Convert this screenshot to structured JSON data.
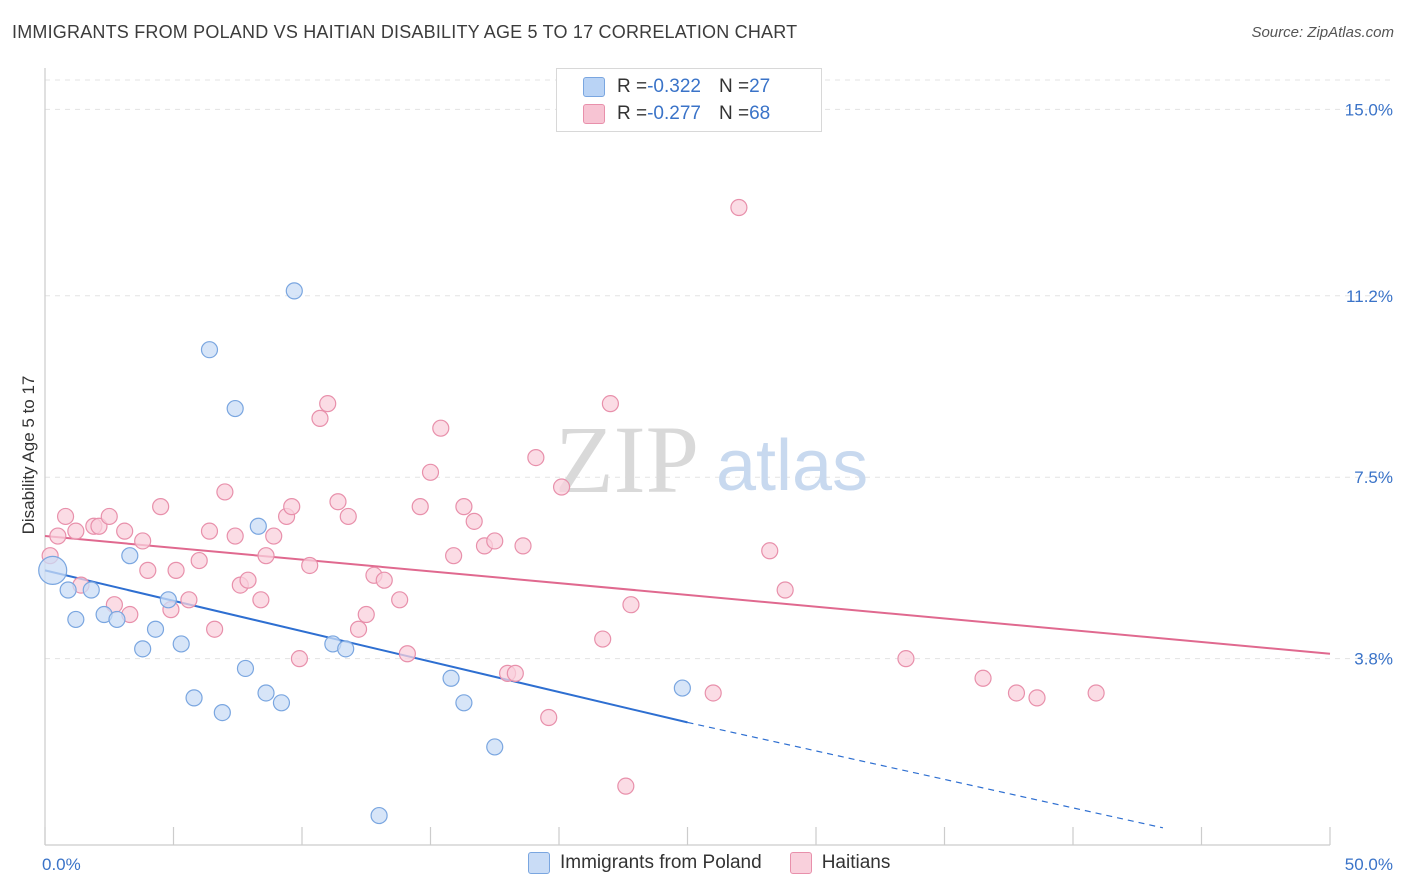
{
  "title": "IMMIGRANTS FROM POLAND VS HAITIAN DISABILITY AGE 5 TO 17 CORRELATION CHART",
  "source": "Source: ZipAtlas.com",
  "watermark": {
    "zip": "ZIP",
    "atlas": "atlas"
  },
  "legend_top": [
    {
      "r_label": "R = ",
      "r_value": "-0.322",
      "n_label": "N = ",
      "n_value": "27",
      "color": "#b9d3f5",
      "border": "#7aa6e0"
    },
    {
      "r_label": "R = ",
      "r_value": "-0.277",
      "n_label": "N = ",
      "n_value": "68",
      "color": "#f7c4d3",
      "border": "#e890ab"
    }
  ],
  "legend_bottom": [
    {
      "label": "Immigrants from Poland",
      "color": "#c9dcf6",
      "border": "#7aa6e0"
    },
    {
      "label": "Haitians",
      "color": "#f9d0dc",
      "border": "#e890ab"
    }
  ],
  "chart_data": {
    "type": "scatter",
    "title": "IMMIGRANTS FROM POLAND VS HAITIAN DISABILITY AGE 5 TO 17 CORRELATION CHART",
    "xlabel": "",
    "ylabel": "Disability Age 5 to 17",
    "xlim": [
      0,
      50
    ],
    "ylim": [
      0.0,
      15.6
    ],
    "x_tick_labels": [
      "0.0%",
      "50.0%"
    ],
    "y_ticks": [
      3.8,
      7.5,
      11.2,
      15.0
    ],
    "y_tick_labels": [
      "3.8%",
      "7.5%",
      "11.2%",
      "15.0%"
    ],
    "grid": true,
    "series": [
      {
        "name": "Immigrants from Poland",
        "color": "#7aa6e0",
        "fill": "#c9dcf6",
        "line_color": "#2e6fd1",
        "r": -0.322,
        "n": 27,
        "trend": {
          "x0": 0,
          "y0": 5.6,
          "x1": 25,
          "y1": 2.5,
          "dash_to_x": 43.5,
          "dash_to_y": 0.35
        },
        "points": [
          [
            0.3,
            5.6
          ],
          [
            0.9,
            5.2
          ],
          [
            1.2,
            4.6
          ],
          [
            1.8,
            5.2
          ],
          [
            2.3,
            4.7
          ],
          [
            2.8,
            4.6
          ],
          [
            3.3,
            5.9
          ],
          [
            3.8,
            4.0
          ],
          [
            4.3,
            4.4
          ],
          [
            4.8,
            5.0
          ],
          [
            5.3,
            4.1
          ],
          [
            5.8,
            3.0
          ],
          [
            6.4,
            10.1
          ],
          [
            6.9,
            2.7
          ],
          [
            7.4,
            8.9
          ],
          [
            7.8,
            3.6
          ],
          [
            8.3,
            6.5
          ],
          [
            8.6,
            3.1
          ],
          [
            9.2,
            2.9
          ],
          [
            9.7,
            11.3
          ],
          [
            11.2,
            4.1
          ],
          [
            11.7,
            4.0
          ],
          [
            13.0,
            0.6
          ],
          [
            15.8,
            3.4
          ],
          [
            16.3,
            2.9
          ],
          [
            17.5,
            2.0
          ],
          [
            24.8,
            3.2
          ]
        ]
      },
      {
        "name": "Haitians",
        "color": "#e890ab",
        "fill": "#f9d0dc",
        "line_color": "#e0698f",
        "r": -0.277,
        "n": 68,
        "trend": {
          "x0": 0,
          "y0": 6.3,
          "x1": 50,
          "y1": 3.9
        },
        "points": [
          [
            0.2,
            5.9
          ],
          [
            0.5,
            6.3
          ],
          [
            0.8,
            6.7
          ],
          [
            1.2,
            6.4
          ],
          [
            1.4,
            5.3
          ],
          [
            1.9,
            6.5
          ],
          [
            2.1,
            6.5
          ],
          [
            2.5,
            6.7
          ],
          [
            2.7,
            4.9
          ],
          [
            3.1,
            6.4
          ],
          [
            3.3,
            4.7
          ],
          [
            3.8,
            6.2
          ],
          [
            4.0,
            5.6
          ],
          [
            4.5,
            6.9
          ],
          [
            4.9,
            4.8
          ],
          [
            5.1,
            5.6
          ],
          [
            5.6,
            5.0
          ],
          [
            6.0,
            5.8
          ],
          [
            6.4,
            6.4
          ],
          [
            6.6,
            4.4
          ],
          [
            7.0,
            7.2
          ],
          [
            7.4,
            6.3
          ],
          [
            7.6,
            5.3
          ],
          [
            7.9,
            5.4
          ],
          [
            8.4,
            5.0
          ],
          [
            8.6,
            5.9
          ],
          [
            8.9,
            6.3
          ],
          [
            9.4,
            6.7
          ],
          [
            9.6,
            6.9
          ],
          [
            9.9,
            3.8
          ],
          [
            10.3,
            5.7
          ],
          [
            10.7,
            8.7
          ],
          [
            11.0,
            9.0
          ],
          [
            11.4,
            7.0
          ],
          [
            11.8,
            6.7
          ],
          [
            12.2,
            4.4
          ],
          [
            12.5,
            4.7
          ],
          [
            12.8,
            5.5
          ],
          [
            13.2,
            5.4
          ],
          [
            13.8,
            5.0
          ],
          [
            14.1,
            3.9
          ],
          [
            14.6,
            6.9
          ],
          [
            15.0,
            7.6
          ],
          [
            15.4,
            8.5
          ],
          [
            15.9,
            5.9
          ],
          [
            16.3,
            6.9
          ],
          [
            16.7,
            6.6
          ],
          [
            17.1,
            6.1
          ],
          [
            17.5,
            6.2
          ],
          [
            18.0,
            3.5
          ],
          [
            18.3,
            3.5
          ],
          [
            18.6,
            6.1
          ],
          [
            19.1,
            7.9
          ],
          [
            19.6,
            2.6
          ],
          [
            20.1,
            7.3
          ],
          [
            21.7,
            4.2
          ],
          [
            22.0,
            9.0
          ],
          [
            22.6,
            1.2
          ],
          [
            22.8,
            4.9
          ],
          [
            26.0,
            3.1
          ],
          [
            27.0,
            13.0
          ],
          [
            28.2,
            6.0
          ],
          [
            28.8,
            5.2
          ],
          [
            33.5,
            3.8
          ],
          [
            36.5,
            3.4
          ],
          [
            37.8,
            3.1
          ],
          [
            38.6,
            3.0
          ],
          [
            40.9,
            3.1
          ]
        ]
      }
    ]
  }
}
